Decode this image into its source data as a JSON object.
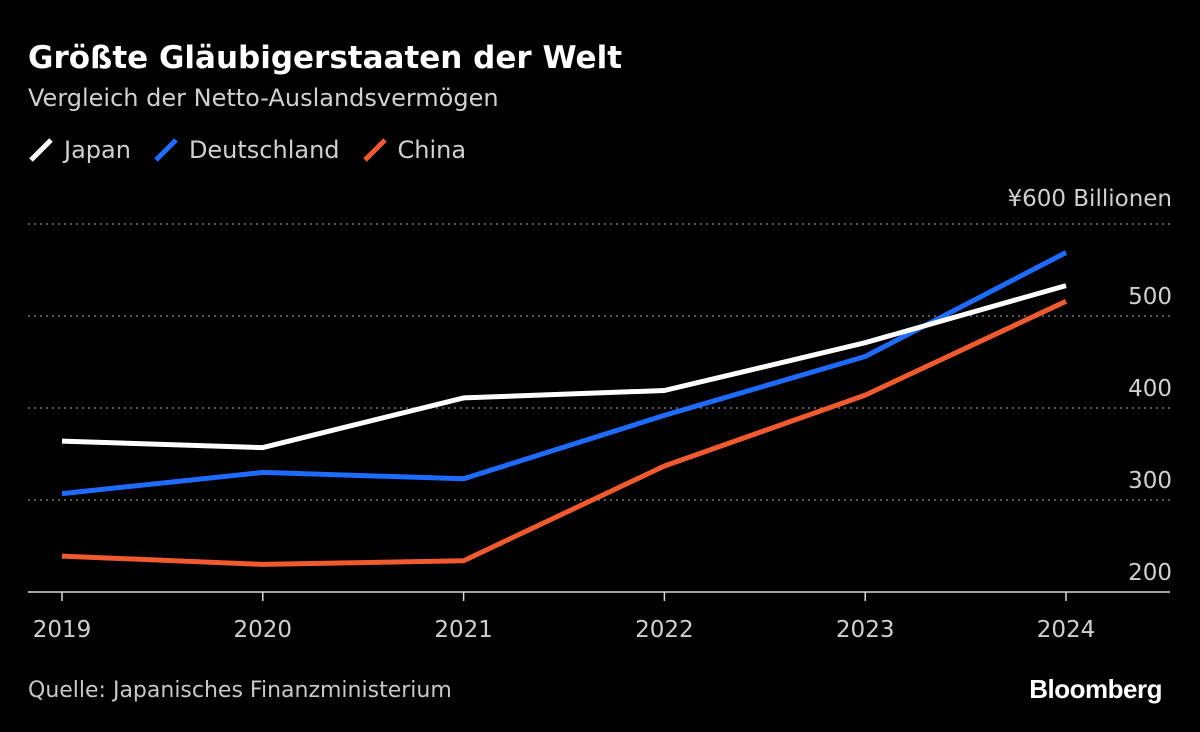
{
  "chart_data": {
    "type": "line",
    "title": "Größte Gläubigerstaaten der Welt",
    "subtitle": "Vergleich der Netto-Auslandsvermögen",
    "x": [
      "2019",
      "2020",
      "2021",
      "2022",
      "2023",
      "2024"
    ],
    "series": [
      {
        "name": "Japan",
        "color": "#ffffff",
        "values": [
          364,
          357,
          411,
          419,
          471,
          533
        ]
      },
      {
        "name": "Deutschland",
        "color": "#1f6bff",
        "values": [
          307,
          330,
          323,
          392,
          456,
          569
        ]
      },
      {
        "name": "China",
        "color": "#f05a2e",
        "values": [
          239,
          230,
          234,
          337,
          414,
          516
        ]
      }
    ],
    "y_ticks": [
      200,
      300,
      400,
      500,
      600
    ],
    "y_tick_labels": [
      "200",
      "300",
      "400",
      "500",
      "¥600 Billionen"
    ],
    "ylim": [
      200,
      600
    ],
    "y_axis_side": "right",
    "grid": "dotted horizontal",
    "legend_position": "top-left",
    "background": "#000000"
  },
  "source": "Quelle: Japanisches Finanzministerium",
  "brand": "Bloomberg"
}
